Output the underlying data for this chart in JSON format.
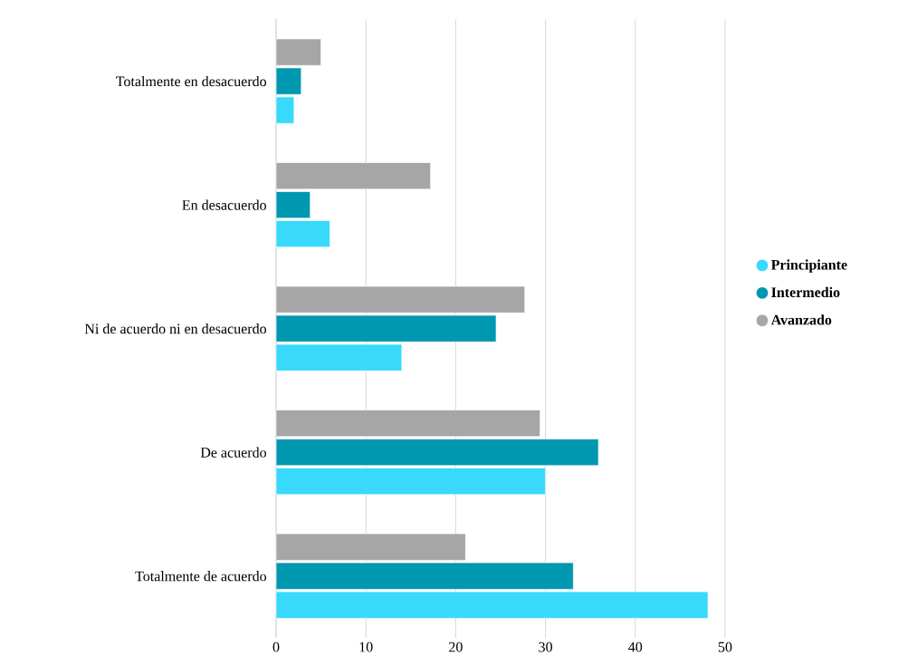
{
  "chart_data": {
    "type": "bar",
    "orientation": "horizontal",
    "categories": [
      "Totalmente en desacuerdo",
      "En desacuerdo",
      "Ni de acuerdo ni en desacuerdo",
      "De acuerdo",
      "Totalmente de acuerdo"
    ],
    "series": [
      {
        "name": "Principiante",
        "color": "#38d9fb",
        "values": [
          2,
          6,
          14,
          30,
          48.1
        ]
      },
      {
        "name": "Intermedio",
        "color": "#0097b0",
        "values": [
          2.8,
          3.8,
          24.5,
          35.9,
          33.1
        ]
      },
      {
        "name": "Avanzado",
        "color": "#a6a6a6",
        "values": [
          5,
          17.2,
          27.7,
          29.4,
          21.1
        ]
      }
    ],
    "xlim": [
      0,
      50
    ],
    "xticks": [
      0,
      10,
      20,
      30,
      40,
      50
    ],
    "grid": "x",
    "legend": "right"
  }
}
